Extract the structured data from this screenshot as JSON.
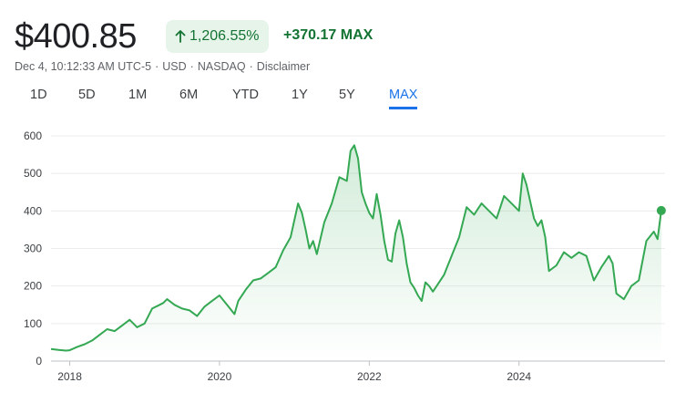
{
  "quote": {
    "price": "$400.85",
    "change_percent": "1,206.55%",
    "change_absolute": "+370.17",
    "change_period": "MAX",
    "meta": [
      "Dec 4, 10:12:33 AM UTC-5",
      "USD",
      "NASDAQ",
      "Disclaimer"
    ],
    "meta_separator": "·"
  },
  "colors": {
    "positive": "#137333",
    "line": "#34a853",
    "accent": "#1a73e8"
  },
  "tabs": [
    {
      "label": "1D"
    },
    {
      "label": "5D"
    },
    {
      "label": "1M"
    },
    {
      "label": "6M"
    },
    {
      "label": "YTD"
    },
    {
      "label": "1Y"
    },
    {
      "label": "5Y"
    },
    {
      "label": "MAX",
      "active": true
    }
  ],
  "chart_data": {
    "type": "area",
    "ylim": [
      0,
      600
    ],
    "yticks": [
      "0",
      "100",
      "200",
      "300",
      "400",
      "500",
      "600"
    ],
    "xlim": [
      2017.75,
      2025.95
    ],
    "xticks": [
      {
        "value": 2018,
        "label": "2018"
      },
      {
        "value": 2020,
        "label": "2020"
      },
      {
        "value": 2022,
        "label": "2022"
      },
      {
        "value": 2024,
        "label": "2024"
      }
    ],
    "grid": true,
    "series": [
      {
        "x": [
          2017.75,
          2017.85,
          2017.95,
          2018.0,
          2018.1,
          2018.2,
          2018.3,
          2018.4,
          2018.5,
          2018.6,
          2018.7,
          2018.8,
          2018.9,
          2019.0,
          2019.1,
          2019.2,
          2019.25,
          2019.3,
          2019.4,
          2019.5,
          2019.6,
          2019.7,
          2019.8,
          2019.9,
          2020.0,
          2020.1,
          2020.2,
          2020.25,
          2020.35,
          2020.45,
          2020.55,
          2020.65,
          2020.75,
          2020.85,
          2020.95,
          2021.05,
          2021.1,
          2021.15,
          2021.2,
          2021.25,
          2021.3,
          2021.4,
          2021.5,
          2021.6,
          2021.7,
          2021.75,
          2021.8,
          2021.85,
          2021.9,
          2021.95,
          2022.0,
          2022.05,
          2022.1,
          2022.15,
          2022.2,
          2022.25,
          2022.3,
          2022.35,
          2022.4,
          2022.45,
          2022.5,
          2022.55,
          2022.6,
          2022.65,
          2022.7,
          2022.75,
          2022.8,
          2022.85,
          2022.9,
          2023.0,
          2023.1,
          2023.2,
          2023.3,
          2023.4,
          2023.5,
          2023.6,
          2023.7,
          2023.8,
          2023.9,
          2024.0,
          2024.05,
          2024.1,
          2024.2,
          2024.25,
          2024.3,
          2024.35,
          2024.4,
          2024.5,
          2024.6,
          2024.7,
          2024.8,
          2024.9,
          2025.0,
          2025.1,
          2025.2,
          2025.25,
          2025.3,
          2025.4,
          2025.5,
          2025.6,
          2025.7,
          2025.8,
          2025.85,
          2025.9
        ],
        "y": [
          32,
          30,
          28,
          29,
          38,
          45,
          55,
          70,
          85,
          80,
          95,
          110,
          90,
          100,
          140,
          150,
          155,
          165,
          150,
          140,
          135,
          120,
          145,
          160,
          175,
          150,
          125,
          160,
          190,
          215,
          220,
          235,
          250,
          295,
          330,
          420,
          395,
          350,
          300,
          320,
          285,
          370,
          420,
          490,
          480,
          560,
          575,
          540,
          450,
          420,
          395,
          380,
          445,
          390,
          320,
          270,
          265,
          340,
          375,
          330,
          260,
          210,
          195,
          175,
          160,
          210,
          200,
          185,
          200,
          230,
          280,
          330,
          410,
          390,
          420,
          400,
          380,
          440,
          420,
          400,
          500,
          470,
          380,
          360,
          375,
          330,
          240,
          255,
          290,
          275,
          290,
          280,
          215,
          250,
          280,
          260,
          180,
          165,
          200,
          215,
          320,
          345,
          325,
          401
        ]
      }
    ]
  }
}
